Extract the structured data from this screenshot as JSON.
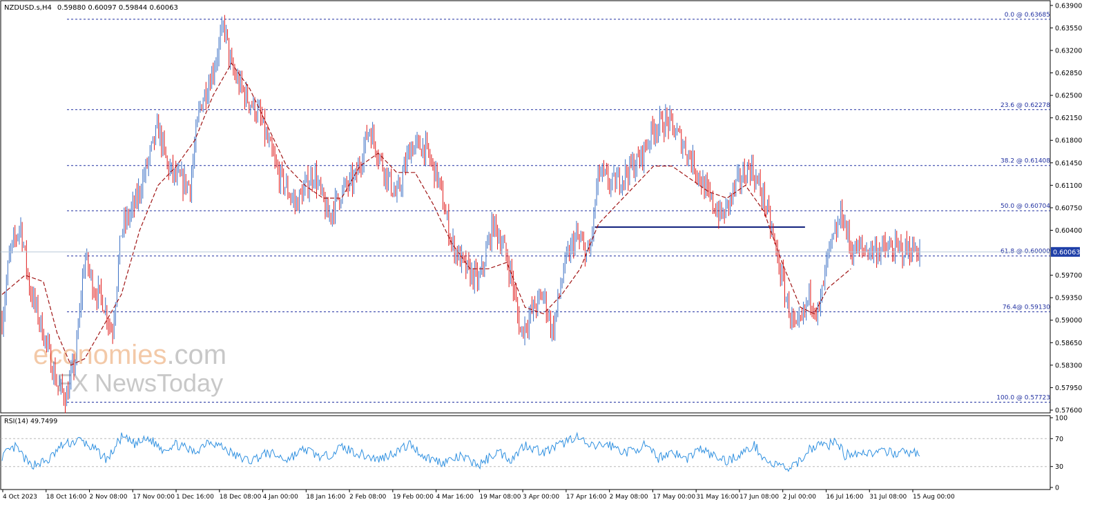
{
  "header": {
    "symbol": "NZDUSD.s,H4",
    "ohlc": "0.59880 0.60097 0.59844 0.60063"
  },
  "watermark": {
    "line1_part_a": "economies",
    "line1_part_b": ".com",
    "line2": "NewsToday",
    "color_a": "#f3c9a8",
    "color_b": "#c8c8c8"
  },
  "colors": {
    "bull_candle": "#3a6fc4",
    "bear_candle": "#e01818",
    "moving_average": "#a01515",
    "fib_lines": "#1f2fa0",
    "support_line": "#0a1a7a",
    "rsi_line": "#2f90e0",
    "price_tag_bg": "#1f3fa8"
  },
  "chart_data": [
    {
      "type": "candlestick",
      "title": "NZDUSD.s,H4",
      "ylim": [
        0.576,
        0.6392
      ],
      "x_tick_labels": [
        "4 Oct 2023",
        "18 Oct 16:00",
        "2 Nov 08:00",
        "17 Nov 00:00",
        "1 Dec 16:00",
        "18 Dec 08:00",
        "4 Jan 00:00",
        "18 Jan 16:00",
        "2 Feb 08:00",
        "19 Feb 00:00",
        "4 Mar 16:00",
        "19 Mar 08:00",
        "3 Apr 00:00",
        "17 Apr 16:00",
        "2 May 08:00",
        "17 May 00:00",
        "31 May 16:00",
        "17 Jun 08:00",
        "2 Jul 00:00",
        "16 Jul 16:00",
        "31 Jul 08:00",
        "15 Aug 00:00"
      ],
      "y_tick_labels": [
        "0.63900",
        "0.63550",
        "0.63200",
        "0.62850",
        "0.62500",
        "0.62150",
        "0.61800",
        "0.61450",
        "0.61100",
        "0.60750",
        "0.60400",
        "0.59700",
        "0.59350",
        "0.59000",
        "0.58650",
        "0.58300",
        "0.57950",
        "0.57600"
      ],
      "y_tick_values": [
        0.639,
        0.6355,
        0.632,
        0.6285,
        0.625,
        0.6215,
        0.618,
        0.6145,
        0.611,
        0.6075,
        0.604,
        0.597,
        0.5935,
        0.59,
        0.5865,
        0.583,
        0.5795,
        0.576
      ],
      "current_price": 0.60063,
      "current_price_label": "0.60063",
      "fibonacci_levels": [
        {
          "label": "0.0 @ 0.63685",
          "price": 0.63685
        },
        {
          "label": "23.6 @ 0.62278",
          "price": 0.62278
        },
        {
          "label": "38.2 @ 0.61408",
          "price": 0.61408
        },
        {
          "label": "50.0 @ 0.60704",
          "price": 0.60704
        },
        {
          "label": "61.8 @ 0.60000",
          "price": 0.6
        },
        {
          "label": "76.4@ 0.59130",
          "price": 0.5913
        },
        {
          "label": "100.0 @ 0.57723",
          "price": 0.57723
        }
      ],
      "support_line": {
        "price": 0.6045,
        "from_index": 0.646,
        "to_index": 0.875
      },
      "price_path": [
        [
          0.0,
          0.59
        ],
        [
          0.008,
          0.6
        ],
        [
          0.02,
          0.605
        ],
        [
          0.03,
          0.595
        ],
        [
          0.045,
          0.588
        ],
        [
          0.06,
          0.58
        ],
        [
          0.07,
          0.578
        ],
        [
          0.08,
          0.584
        ],
        [
          0.09,
          0.6
        ],
        [
          0.1,
          0.595
        ],
        [
          0.11,
          0.593
        ],
        [
          0.12,
          0.588
        ],
        [
          0.13,
          0.604
        ],
        [
          0.145,
          0.608
        ],
        [
          0.16,
          0.615
        ],
        [
          0.17,
          0.62
        ],
        [
          0.18,
          0.614
        ],
        [
          0.19,
          0.612
        ],
        [
          0.205,
          0.611
        ],
        [
          0.215,
          0.623
        ],
        [
          0.23,
          0.629
        ],
        [
          0.242,
          0.636
        ],
        [
          0.25,
          0.629
        ],
        [
          0.265,
          0.625
        ],
        [
          0.28,
          0.622
        ],
        [
          0.3,
          0.613
        ],
        [
          0.32,
          0.608
        ],
        [
          0.34,
          0.613
        ],
        [
          0.355,
          0.606
        ],
        [
          0.37,
          0.61
        ],
        [
          0.385,
          0.612
        ],
        [
          0.4,
          0.62
        ],
        [
          0.415,
          0.614
        ],
        [
          0.43,
          0.609
        ],
        [
          0.445,
          0.617
        ],
        [
          0.46,
          0.617
        ],
        [
          0.475,
          0.612
        ],
        [
          0.49,
          0.602
        ],
        [
          0.505,
          0.598
        ],
        [
          0.52,
          0.596
        ],
        [
          0.535,
          0.605
        ],
        [
          0.545,
          0.602
        ],
        [
          0.555,
          0.597
        ],
        [
          0.565,
          0.588
        ],
        [
          0.58,
          0.592
        ],
        [
          0.59,
          0.594
        ],
        [
          0.6,
          0.588
        ],
        [
          0.612,
          0.598
        ],
        [
          0.625,
          0.603
        ],
        [
          0.64,
          0.6
        ],
        [
          0.65,
          0.613
        ],
        [
          0.665,
          0.611
        ],
        [
          0.68,
          0.613
        ],
        [
          0.695,
          0.615
        ],
        [
          0.71,
          0.62
        ],
        [
          0.725,
          0.621
        ],
        [
          0.74,
          0.618
        ],
        [
          0.755,
          0.614
        ],
        [
          0.77,
          0.609
        ],
        [
          0.785,
          0.606
        ],
        [
          0.8,
          0.611
        ],
        [
          0.815,
          0.614
        ],
        [
          0.83,
          0.609
        ],
        [
          0.84,
          0.603
        ],
        [
          0.855,
          0.593
        ],
        [
          0.865,
          0.588
        ],
        [
          0.872,
          0.59
        ],
        [
          0.88,
          0.594
        ],
        [
          0.89,
          0.591
        ],
        [
          0.9,
          0.6
        ],
        [
          0.91,
          0.604
        ],
        [
          0.915,
          0.607
        ],
        [
          0.925,
          0.601
        ]
      ],
      "moving_average_path": [
        [
          0.0,
          0.594
        ],
        [
          0.025,
          0.597
        ],
        [
          0.045,
          0.596
        ],
        [
          0.06,
          0.588
        ],
        [
          0.075,
          0.583
        ],
        [
          0.09,
          0.584
        ],
        [
          0.11,
          0.589
        ],
        [
          0.13,
          0.594
        ],
        [
          0.15,
          0.604
        ],
        [
          0.17,
          0.611
        ],
        [
          0.19,
          0.614
        ],
        [
          0.21,
          0.618
        ],
        [
          0.23,
          0.625
        ],
        [
          0.25,
          0.63
        ],
        [
          0.27,
          0.626
        ],
        [
          0.29,
          0.62
        ],
        [
          0.31,
          0.614
        ],
        [
          0.33,
          0.611
        ],
        [
          0.35,
          0.609
        ],
        [
          0.37,
          0.609
        ],
        [
          0.39,
          0.614
        ],
        [
          0.41,
          0.616
        ],
        [
          0.43,
          0.613
        ],
        [
          0.45,
          0.613
        ],
        [
          0.47,
          0.608
        ],
        [
          0.49,
          0.602
        ],
        [
          0.51,
          0.598
        ],
        [
          0.53,
          0.598
        ],
        [
          0.55,
          0.599
        ],
        [
          0.57,
          0.592
        ],
        [
          0.59,
          0.591
        ],
        [
          0.61,
          0.594
        ],
        [
          0.63,
          0.598
        ],
        [
          0.65,
          0.605
        ],
        [
          0.67,
          0.608
        ],
        [
          0.69,
          0.611
        ],
        [
          0.71,
          0.614
        ],
        [
          0.73,
          0.614
        ],
        [
          0.75,
          0.612
        ],
        [
          0.77,
          0.61
        ],
        [
          0.79,
          0.609
        ],
        [
          0.81,
          0.611
        ],
        [
          0.83,
          0.607
        ],
        [
          0.85,
          0.599
        ],
        [
          0.87,
          0.592
        ],
        [
          0.885,
          0.591
        ],
        [
          0.9,
          0.595
        ],
        [
          0.925,
          0.598
        ]
      ],
      "indicator": {
        "type": "line",
        "label": "RSI(14) 49.7499",
        "ylim": [
          0,
          100
        ],
        "y_tick_labels": [
          "100",
          "70",
          "30",
          "0"
        ],
        "y_tick_values": [
          100,
          70,
          30,
          0
        ],
        "reference_levels": [
          70,
          30
        ],
        "path": [
          [
            0.0,
            45
          ],
          [
            0.015,
            58
          ],
          [
            0.03,
            32
          ],
          [
            0.05,
            38
          ],
          [
            0.065,
            60
          ],
          [
            0.085,
            68
          ],
          [
            0.1,
            55
          ],
          [
            0.115,
            40
          ],
          [
            0.13,
            72
          ],
          [
            0.145,
            62
          ],
          [
            0.16,
            70
          ],
          [
            0.175,
            55
          ],
          [
            0.19,
            62
          ],
          [
            0.21,
            50
          ],
          [
            0.225,
            68
          ],
          [
            0.24,
            58
          ],
          [
            0.255,
            45
          ],
          [
            0.27,
            38
          ],
          [
            0.29,
            50
          ],
          [
            0.31,
            40
          ],
          [
            0.33,
            55
          ],
          [
            0.35,
            42
          ],
          [
            0.37,
            58
          ],
          [
            0.39,
            48
          ],
          [
            0.41,
            40
          ],
          [
            0.43,
            52
          ],
          [
            0.445,
            62
          ],
          [
            0.46,
            44
          ],
          [
            0.48,
            36
          ],
          [
            0.5,
            44
          ],
          [
            0.52,
            32
          ],
          [
            0.54,
            52
          ],
          [
            0.555,
            40
          ],
          [
            0.57,
            62
          ],
          [
            0.59,
            50
          ],
          [
            0.61,
            62
          ],
          [
            0.625,
            74
          ],
          [
            0.64,
            58
          ],
          [
            0.66,
            62
          ],
          [
            0.68,
            50
          ],
          [
            0.7,
            60
          ],
          [
            0.715,
            42
          ],
          [
            0.73,
            52
          ],
          [
            0.745,
            40
          ],
          [
            0.76,
            56
          ],
          [
            0.775,
            45
          ],
          [
            0.79,
            38
          ],
          [
            0.805,
            48
          ],
          [
            0.82,
            60
          ],
          [
            0.835,
            35
          ],
          [
            0.85,
            30
          ],
          [
            0.86,
            26
          ],
          [
            0.87,
            40
          ],
          [
            0.88,
            55
          ],
          [
            0.89,
            62
          ],
          [
            0.9,
            60
          ],
          [
            0.91,
            68
          ],
          [
            0.918,
            45
          ],
          [
            0.925,
            50
          ]
        ]
      }
    }
  ]
}
